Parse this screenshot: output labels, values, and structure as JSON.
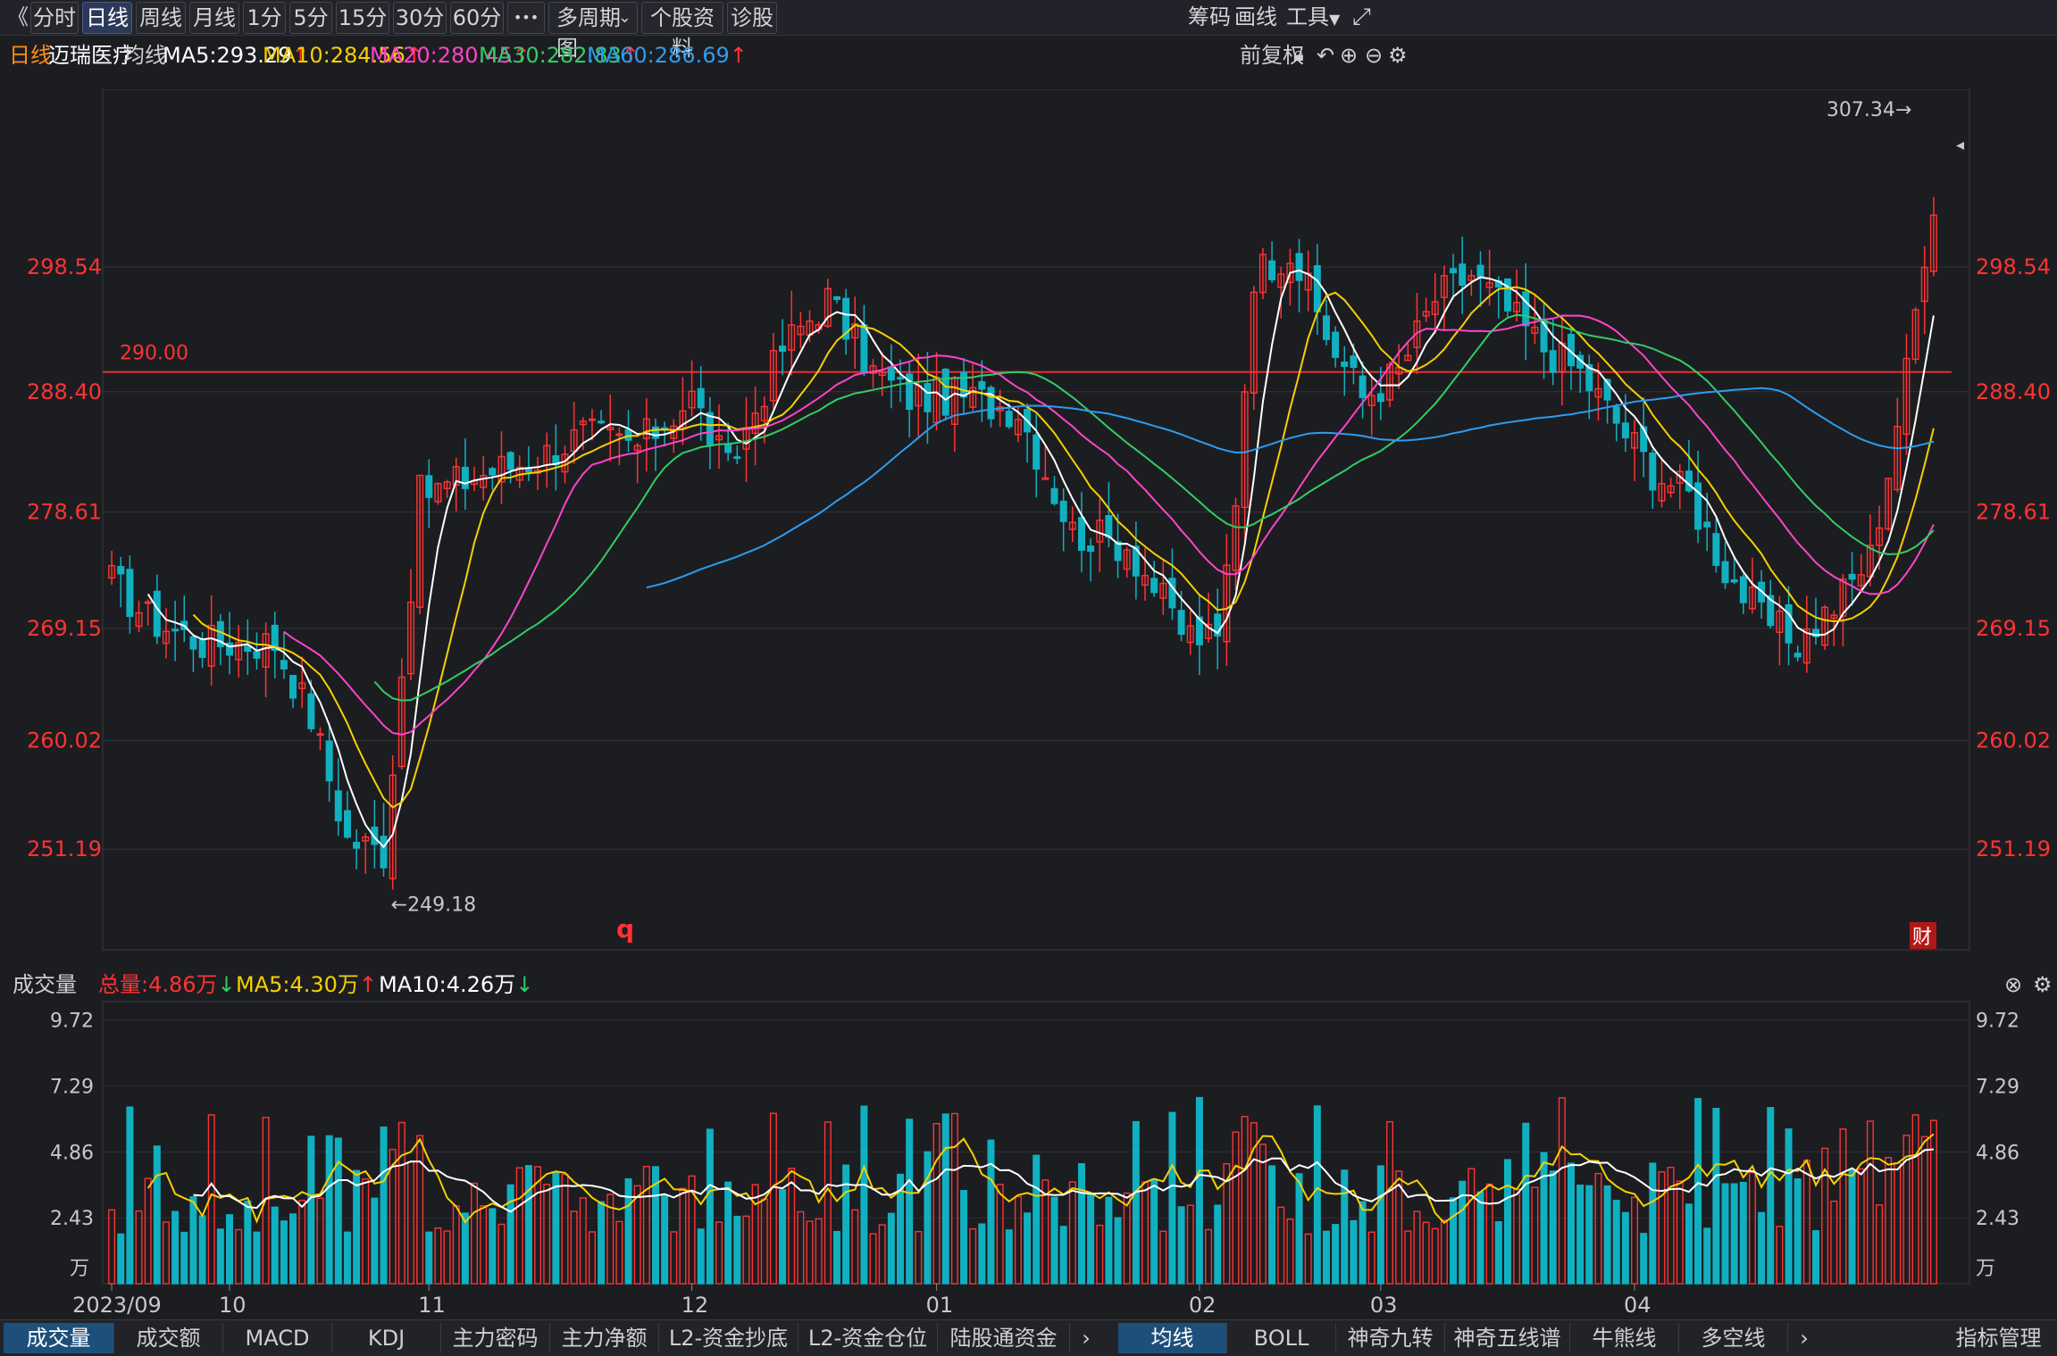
{
  "toolbar": {
    "collapse_glyph": "《",
    "periods": [
      "分时",
      "日线",
      "周线",
      "月线",
      "1分",
      "5分",
      "15分",
      "30分",
      "60分"
    ],
    "active_period": "日线",
    "more_glyph": "•••",
    "multi_period": "多周期图",
    "stock_info": "个股资料",
    "diagnose": "诊股",
    "chips": "筹码",
    "draw": "画线",
    "tools": "工具",
    "fullscreen_icon": "expand-icon"
  },
  "ma_header": {
    "period": "日线",
    "stock_name": "迈瑞医疗",
    "ma_label": "均线",
    "ma5": "MA5:293.29",
    "ma10": "MA10:284.56",
    "ma20": "MA20:280.45",
    "ma30": "MA30:282.83",
    "ma60": "MA60:286.69",
    "adjust": "前复权"
  },
  "colors": {
    "up": "#ff3333",
    "down": "#11b0c0",
    "ma5": "#ffffff",
    "ma10": "#f5d000",
    "ma20": "#ff44c8",
    "ma30": "#33cc66",
    "ma60": "#2e9cf0",
    "price_axis": "#ff3333",
    "ref_line": "#e03030"
  },
  "chart_data": {
    "type": "candlestick",
    "y_ticks": [
      "298.54",
      "288.40",
      "278.61",
      "269.15",
      "260.02",
      "251.19"
    ],
    "ylim": [
      243.0,
      313.0
    ],
    "ref_line": {
      "value": 290.0,
      "label": "290.00"
    },
    "high_marker": "307.34→",
    "low_marker": "←249.18",
    "marker_q": "q",
    "finance_badge": "财",
    "x_labels": [
      {
        "label": "2023/09",
        "index": 0
      },
      {
        "label": "10",
        "index": 13
      },
      {
        "label": "11",
        "index": 35
      },
      {
        "label": "12",
        "index": 64
      },
      {
        "label": "01",
        "index": 91
      },
      {
        "label": "02",
        "index": 120
      },
      {
        "label": "03",
        "index": 140
      },
      {
        "label": "04",
        "index": 168
      }
    ],
    "candles": [],
    "volume": {
      "title": "成交量",
      "total": "总量:4.86万",
      "ma5": "MA5:4.30万",
      "ma10": "MA10:4.26万",
      "y_ticks": [
        "9.72",
        "7.29",
        "4.86",
        "2.43"
      ],
      "unit": "万",
      "ylim": [
        0,
        10.4
      ]
    }
  },
  "bottom_tabs": {
    "left": [
      "成交量",
      "成交额",
      "MACD",
      "KDJ",
      "主力密码",
      "主力净额",
      "L2-资金抄底",
      "L2-资金仓位",
      "陆股通资金"
    ],
    "active_left": "成交量",
    "right": [
      "均线",
      "BOLL",
      "神奇九转",
      "神奇五线谱",
      "牛熊线",
      "多空线"
    ],
    "active_right": "均线",
    "manage": "指标管理"
  }
}
